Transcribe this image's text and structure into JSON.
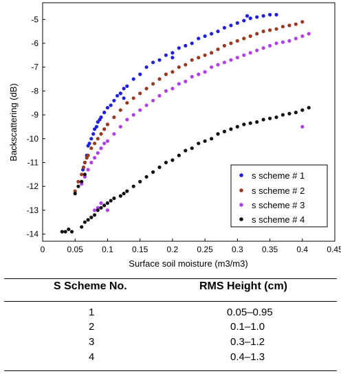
{
  "chart_data": {
    "type": "scatter",
    "xlabel": "Surface soil moisture (m3/m3)",
    "ylabel": "Backscattering (dB)",
    "xlim": [
      0,
      0.45
    ],
    "ylim": [
      -14.3,
      -4.3
    ],
    "xticks": [
      "0",
      "0.05",
      "0.1",
      "0.15",
      "0.2",
      "0.25",
      "0.3",
      "0.35",
      "0.4",
      "0.45"
    ],
    "yticks": [
      "-5",
      "-6",
      "-7",
      "-8",
      "-9",
      "-10",
      "-11",
      "-12",
      "-13",
      "-14"
    ],
    "grid": false,
    "legend": "bottom-right",
    "series": [
      {
        "name": "s scheme # 1",
        "color": "#2020e0",
        "x": [
          0.06,
          0.062,
          0.065,
          0.068,
          0.07,
          0.072,
          0.075,
          0.078,
          0.08,
          0.083,
          0.085,
          0.088,
          0.09,
          0.095,
          0.1,
          0.105,
          0.11,
          0.115,
          0.12,
          0.125,
          0.13,
          0.14,
          0.15,
          0.16,
          0.17,
          0.18,
          0.19,
          0.2,
          0.21,
          0.22,
          0.23,
          0.24,
          0.25,
          0.26,
          0.27,
          0.28,
          0.29,
          0.3,
          0.31,
          0.32,
          0.33,
          0.34,
          0.35,
          0.36,
          0.12,
          0.125,
          0.2,
          0.315
        ],
        "y": [
          -11.8,
          -11.3,
          -11.0,
          -10.7,
          -10.3,
          -10.2,
          -10.0,
          -9.8,
          -9.6,
          -9.5,
          -9.3,
          -9.2,
          -9.1,
          -8.9,
          -8.7,
          -8.6,
          -8.4,
          -8.2,
          -8.1,
          -7.9,
          -7.8,
          -7.5,
          -7.3,
          -7.0,
          -6.8,
          -6.7,
          -6.5,
          -6.4,
          -6.2,
          -6.1,
          -6.0,
          -5.8,
          -5.7,
          -5.6,
          -5.5,
          -5.35,
          -5.25,
          -5.15,
          -5.05,
          -4.95,
          -4.9,
          -4.85,
          -4.8,
          -4.8,
          -8.1,
          -8.3,
          -6.6,
          -4.85
        ]
      },
      {
        "name": "s scheme # 2",
        "color": "#983a20",
        "x": [
          0.05,
          0.055,
          0.06,
          0.063,
          0.065,
          0.068,
          0.07,
          0.075,
          0.08,
          0.085,
          0.09,
          0.095,
          0.1,
          0.11,
          0.12,
          0.13,
          0.14,
          0.15,
          0.16,
          0.17,
          0.18,
          0.19,
          0.2,
          0.21,
          0.22,
          0.23,
          0.24,
          0.25,
          0.26,
          0.27,
          0.28,
          0.29,
          0.3,
          0.31,
          0.32,
          0.33,
          0.34,
          0.35,
          0.36,
          0.37,
          0.38,
          0.39,
          0.4
        ],
        "y": [
          -12.2,
          -11.8,
          -11.5,
          -11.2,
          -11.0,
          -10.8,
          -10.7,
          -10.4,
          -10.2,
          -10.0,
          -9.8,
          -9.6,
          -9.4,
          -9.1,
          -8.8,
          -8.5,
          -8.3,
          -8.1,
          -7.9,
          -7.7,
          -7.5,
          -7.3,
          -7.2,
          -7.0,
          -6.9,
          -6.7,
          -6.6,
          -6.5,
          -6.4,
          -6.25,
          -6.1,
          -6.0,
          -5.9,
          -5.8,
          -5.7,
          -5.6,
          -5.5,
          -5.45,
          -5.4,
          -5.3,
          -5.25,
          -5.2,
          -5.1
        ]
      },
      {
        "name": "s scheme # 3",
        "color": "#b040ee",
        "x": [
          0.06,
          0.065,
          0.07,
          0.075,
          0.08,
          0.085,
          0.09,
          0.1,
          0.11,
          0.12,
          0.13,
          0.14,
          0.15,
          0.16,
          0.17,
          0.18,
          0.19,
          0.2,
          0.21,
          0.22,
          0.23,
          0.24,
          0.25,
          0.26,
          0.27,
          0.28,
          0.29,
          0.3,
          0.31,
          0.32,
          0.33,
          0.34,
          0.35,
          0.36,
          0.37,
          0.38,
          0.39,
          0.4,
          0.41,
          0.075,
          0.08,
          0.085,
          0.09,
          0.095,
          0.1,
          0.09,
          0.095,
          0.4
        ],
        "y": [
          -11.9,
          -11.6,
          -11.3,
          -11.0,
          -10.8,
          -10.6,
          -10.4,
          -10.1,
          -9.8,
          -9.5,
          -9.2,
          -9.0,
          -8.8,
          -8.6,
          -8.4,
          -8.2,
          -8.0,
          -7.9,
          -7.7,
          -7.6,
          -7.4,
          -7.3,
          -7.2,
          -7.0,
          -6.9,
          -6.8,
          -6.7,
          -6.6,
          -6.5,
          -6.4,
          -6.3,
          -6.2,
          -6.1,
          -6.0,
          -5.95,
          -5.9,
          -5.8,
          -5.7,
          -5.6,
          -13.3,
          -13.0,
          -12.9,
          -12.7,
          -12.8,
          -13.0,
          -10.4,
          -10.2,
          -9.5
        ]
      },
      {
        "name": "s scheme # 4",
        "color": "#111111",
        "x": [
          0.03,
          0.035,
          0.04,
          0.045,
          0.06,
          0.065,
          0.07,
          0.075,
          0.08,
          0.085,
          0.09,
          0.095,
          0.1,
          0.105,
          0.11,
          0.12,
          0.125,
          0.13,
          0.14,
          0.15,
          0.16,
          0.17,
          0.18,
          0.19,
          0.2,
          0.21,
          0.22,
          0.23,
          0.24,
          0.25,
          0.26,
          0.27,
          0.28,
          0.29,
          0.3,
          0.31,
          0.32,
          0.33,
          0.34,
          0.35,
          0.36,
          0.37,
          0.38,
          0.39,
          0.4,
          0.41,
          0.05,
          0.055,
          0.06,
          0.065
        ],
        "y": [
          -13.9,
          -13.9,
          -13.8,
          -13.9,
          -13.7,
          -13.5,
          -13.4,
          -13.3,
          -13.2,
          -13.0,
          -12.9,
          -12.8,
          -12.7,
          -12.6,
          -12.5,
          -12.4,
          -12.3,
          -12.2,
          -12.0,
          -11.8,
          -11.6,
          -11.4,
          -11.2,
          -11.0,
          -10.9,
          -10.7,
          -10.5,
          -10.4,
          -10.2,
          -10.1,
          -10.0,
          -9.8,
          -9.7,
          -9.6,
          -9.5,
          -9.4,
          -9.35,
          -9.3,
          -9.2,
          -9.15,
          -9.1,
          -9.0,
          -8.95,
          -8.9,
          -8.8,
          -8.7,
          -12.3,
          -12.0,
          -11.8,
          -11.5
        ]
      }
    ]
  },
  "table": {
    "headers": [
      "S Scheme No.",
      "RMS Height (cm)"
    ],
    "rows": [
      [
        "1",
        "0.05–0.95"
      ],
      [
        "2",
        "0.1–1.0"
      ],
      [
        "3",
        "0.3–1.2"
      ],
      [
        "4",
        "0.4–1.3"
      ]
    ]
  }
}
